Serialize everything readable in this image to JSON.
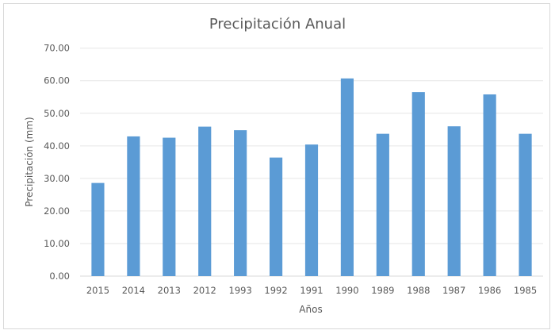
{
  "chart_data": {
    "type": "bar",
    "title": "Precipitación Anual",
    "xlabel": "Años",
    "ylabel": "Precipitación (mm)",
    "categories": [
      "2015",
      "2014",
      "2013",
      "2012",
      "1993",
      "1992",
      "1991",
      "1990",
      "1989",
      "1988",
      "1987",
      "1986",
      "1985"
    ],
    "values": [
      28.6,
      42.9,
      42.5,
      45.9,
      44.8,
      36.4,
      40.4,
      60.7,
      43.7,
      56.5,
      46.0,
      55.8,
      43.7
    ],
    "ylim": [
      0,
      70
    ],
    "yticks": [
      "0.00",
      "10.00",
      "20.00",
      "30.00",
      "40.00",
      "50.00",
      "60.00",
      "70.00"
    ],
    "grid": true,
    "bar_color": "#5b9bd5",
    "grid_color": "#e6e6e6"
  }
}
